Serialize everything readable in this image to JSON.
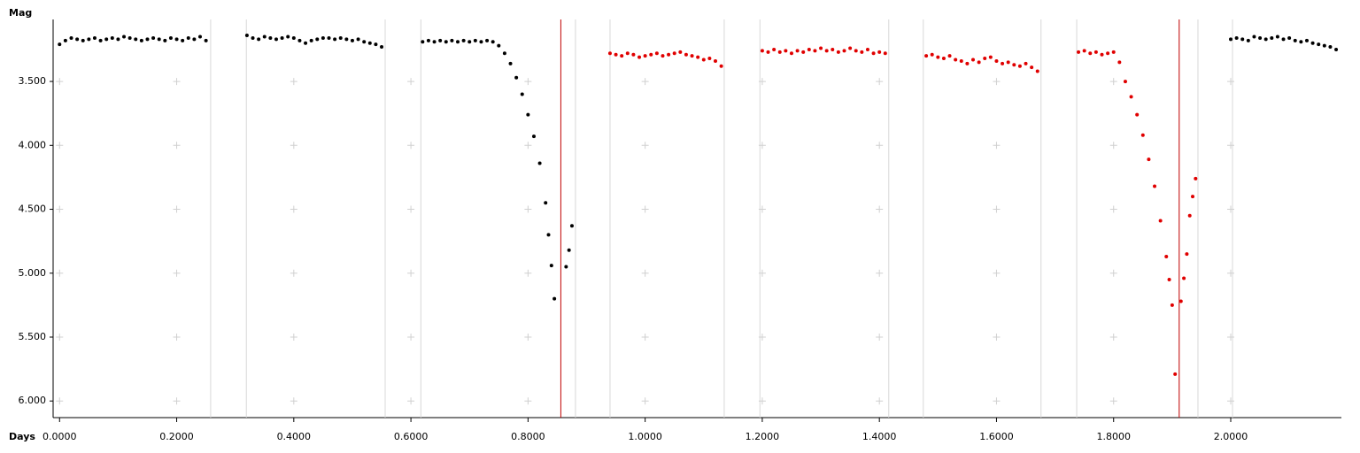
{
  "chart_data": {
    "type": "scatter",
    "xlabel": "Days",
    "ylabel": "Mag",
    "xlim": [
      -0.011,
      2.189
    ],
    "ylim": [
      6.13,
      3.015
    ],
    "xticks": [
      {
        "value": 0,
        "label": "0.0000"
      },
      {
        "value": 0.2,
        "label": "0.2000"
      },
      {
        "value": 0.4,
        "label": "0.4000"
      },
      {
        "value": 0.6,
        "label": "0.6000"
      },
      {
        "value": 0.8,
        "label": "0.8000"
      },
      {
        "value": 1,
        "label": "1.0000"
      },
      {
        "value": 1.2,
        "label": "1.2000"
      },
      {
        "value": 1.4,
        "label": "1.4000"
      },
      {
        "value": 1.6,
        "label": "1.6000"
      },
      {
        "value": 1.8,
        "label": "1.8000"
      },
      {
        "value": 2,
        "label": "2.0000"
      }
    ],
    "yticks": [
      {
        "value": 3.5,
        "label": "3.500"
      },
      {
        "value": 4,
        "label": "4.000"
      },
      {
        "value": 4.5,
        "label": "4.500"
      },
      {
        "value": 5,
        "label": "5.000"
      },
      {
        "value": 5.5,
        "label": "5.500"
      },
      {
        "value": 6,
        "label": "6.000"
      }
    ],
    "session_bounds": [
      0.258,
      0.319,
      0.556,
      0.617,
      0.881,
      0.94,
      1.135,
      1.196,
      1.416,
      1.475,
      1.676,
      1.737,
      1.944,
      2.003
    ],
    "session_bound_color": "#d8d8d8",
    "markers": [
      {
        "x": 0.856,
        "color": "#c00000"
      },
      {
        "x": 1.912,
        "color": "#c00000"
      }
    ],
    "series": [
      {
        "color": "#000000",
        "x": [
          0.0,
          0.01,
          0.02,
          0.03,
          0.04,
          0.05,
          0.06,
          0.07,
          0.08,
          0.09,
          0.1,
          0.11,
          0.12,
          0.13,
          0.14,
          0.15,
          0.16,
          0.17,
          0.18,
          0.19,
          0.2,
          0.21,
          0.22,
          0.23,
          0.24,
          0.25,
          0.32,
          0.33,
          0.34,
          0.35,
          0.36,
          0.37,
          0.38,
          0.39,
          0.4,
          0.41,
          0.42,
          0.43,
          0.44,
          0.45,
          0.46,
          0.47,
          0.48,
          0.49,
          0.5,
          0.51,
          0.52,
          0.53,
          0.54,
          0.55,
          0.62,
          0.63,
          0.64,
          0.65,
          0.66,
          0.67,
          0.68,
          0.69,
          0.7,
          0.71,
          0.72,
          0.73,
          0.74,
          0.75,
          0.76,
          0.77,
          0.78,
          0.79,
          0.8,
          0.81,
          0.82,
          0.83,
          0.835,
          0.84,
          0.845,
          0.865,
          0.87,
          0.875,
          2.0,
          2.01,
          2.02,
          2.03,
          2.04,
          2.05,
          2.06,
          2.07,
          2.08,
          2.09,
          2.1,
          2.11,
          2.12,
          2.13,
          2.14,
          2.15,
          2.16,
          2.17,
          2.18
        ],
        "values": [
          3.21,
          3.18,
          3.16,
          3.17,
          3.18,
          3.17,
          3.16,
          3.18,
          3.17,
          3.16,
          3.17,
          3.15,
          3.16,
          3.17,
          3.18,
          3.17,
          3.16,
          3.17,
          3.18,
          3.16,
          3.17,
          3.18,
          3.16,
          3.17,
          3.15,
          3.18,
          3.14,
          3.16,
          3.17,
          3.15,
          3.16,
          3.17,
          3.16,
          3.15,
          3.16,
          3.18,
          3.2,
          3.18,
          3.17,
          3.16,
          3.16,
          3.17,
          3.16,
          3.17,
          3.18,
          3.17,
          3.19,
          3.2,
          3.21,
          3.23,
          3.19,
          3.18,
          3.19,
          3.18,
          3.19,
          3.18,
          3.19,
          3.18,
          3.19,
          3.18,
          3.19,
          3.18,
          3.19,
          3.22,
          3.28,
          3.36,
          3.47,
          3.6,
          3.76,
          3.93,
          4.14,
          4.45,
          4.7,
          4.94,
          5.2,
          4.95,
          4.82,
          4.63,
          3.17,
          3.16,
          3.17,
          3.18,
          3.15,
          3.16,
          3.17,
          3.16,
          3.15,
          3.17,
          3.16,
          3.18,
          3.19,
          3.18,
          3.2,
          3.21,
          3.22,
          3.23,
          3.25
        ]
      },
      {
        "color": "#e00000",
        "x": [
          0.94,
          0.95,
          0.96,
          0.97,
          0.98,
          0.99,
          1.0,
          1.01,
          1.02,
          1.03,
          1.04,
          1.05,
          1.06,
          1.07,
          1.08,
          1.09,
          1.1,
          1.11,
          1.12,
          1.13,
          1.2,
          1.21,
          1.22,
          1.23,
          1.24,
          1.25,
          1.26,
          1.27,
          1.28,
          1.29,
          1.3,
          1.31,
          1.32,
          1.33,
          1.34,
          1.35,
          1.36,
          1.37,
          1.38,
          1.39,
          1.4,
          1.41,
          1.48,
          1.49,
          1.5,
          1.51,
          1.52,
          1.53,
          1.54,
          1.55,
          1.56,
          1.57,
          1.58,
          1.59,
          1.6,
          1.61,
          1.62,
          1.63,
          1.64,
          1.65,
          1.66,
          1.67,
          1.74,
          1.75,
          1.76,
          1.77,
          1.78,
          1.79,
          1.8,
          1.81,
          1.82,
          1.83,
          1.84,
          1.85,
          1.86,
          1.87,
          1.88,
          1.89,
          1.895,
          1.9,
          1.905,
          1.915,
          1.92,
          1.925,
          1.93,
          1.935,
          1.94
        ],
        "values": [
          3.28,
          3.29,
          3.3,
          3.28,
          3.29,
          3.31,
          3.3,
          3.29,
          3.28,
          3.3,
          3.29,
          3.28,
          3.27,
          3.29,
          3.3,
          3.31,
          3.33,
          3.32,
          3.34,
          3.38,
          3.26,
          3.27,
          3.25,
          3.27,
          3.26,
          3.28,
          3.26,
          3.27,
          3.25,
          3.26,
          3.24,
          3.26,
          3.25,
          3.27,
          3.26,
          3.24,
          3.26,
          3.27,
          3.25,
          3.28,
          3.27,
          3.28,
          3.3,
          3.29,
          3.31,
          3.32,
          3.3,
          3.33,
          3.34,
          3.36,
          3.33,
          3.35,
          3.32,
          3.31,
          3.34,
          3.36,
          3.35,
          3.37,
          3.38,
          3.36,
          3.39,
          3.42,
          3.27,
          3.26,
          3.28,
          3.27,
          3.29,
          3.28,
          3.27,
          3.35,
          3.5,
          3.62,
          3.76,
          3.92,
          4.11,
          4.32,
          4.59,
          4.87,
          5.05,
          5.25,
          5.79,
          5.22,
          5.04,
          4.85,
          4.55,
          4.4,
          4.26
        ]
      }
    ]
  }
}
